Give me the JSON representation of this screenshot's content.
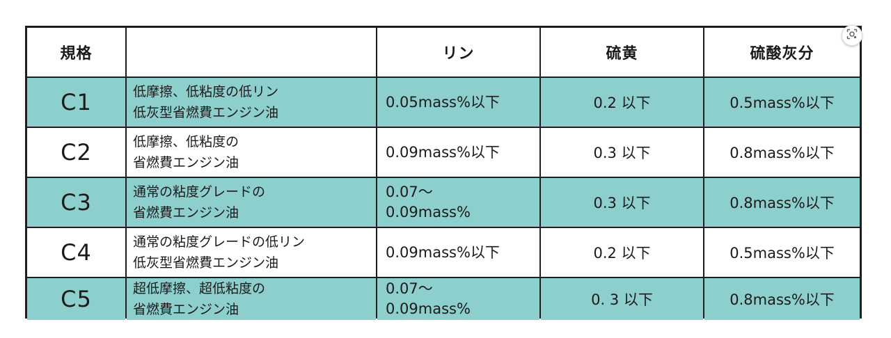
{
  "table": {
    "headers": [
      "規格",
      "",
      "リン",
      "硫黄",
      "硫酸灰分"
    ],
    "rows": [
      {
        "grade": "C1",
        "description": [
          "低摩擦、低粘度の低リン",
          "低灰型省燃費エンジン油"
        ],
        "phosphorus": [
          "0.05mass%以下"
        ],
        "sulfur": "0.2 以下",
        "sulfated_ash": "0.5mass%以下"
      },
      {
        "grade": "C2",
        "description": [
          "低摩擦、低粘度の",
          "省燃費エンジン油"
        ],
        "phosphorus": [
          "0.09mass%以下"
        ],
        "sulfur": "0.3 以下",
        "sulfated_ash": "0.8mass%以下"
      },
      {
        "grade": "C3",
        "description": [
          "通常の粘度グレードの",
          "省燃費エンジン油"
        ],
        "phosphorus": [
          "0.07〜",
          "0.09mass%"
        ],
        "sulfur": "0.3 以下",
        "sulfated_ash": "0.8mass%以下"
      },
      {
        "grade": "C4",
        "description": [
          "通常の粘度グレードの低リン",
          "低灰型省燃費エンジン油"
        ],
        "phosphorus": [
          "0.09mass%以下"
        ],
        "sulfur": "0.2 以下",
        "sulfated_ash": "0.5mass%以下"
      },
      {
        "grade": "C5",
        "description": [
          "超低摩擦、超低粘度の",
          "省燃費エンジン油"
        ],
        "phosphorus": [
          "0.07〜",
          "0.09mass%"
        ],
        "sulfur": "0. 3 以下",
        "sulfated_ash": "0.8mass%以下"
      }
    ]
  },
  "colors": {
    "row_tint": "#8dcfcd",
    "border": "#1e1e1e"
  },
  "overlay": {
    "icon": "visual-search-icon"
  }
}
